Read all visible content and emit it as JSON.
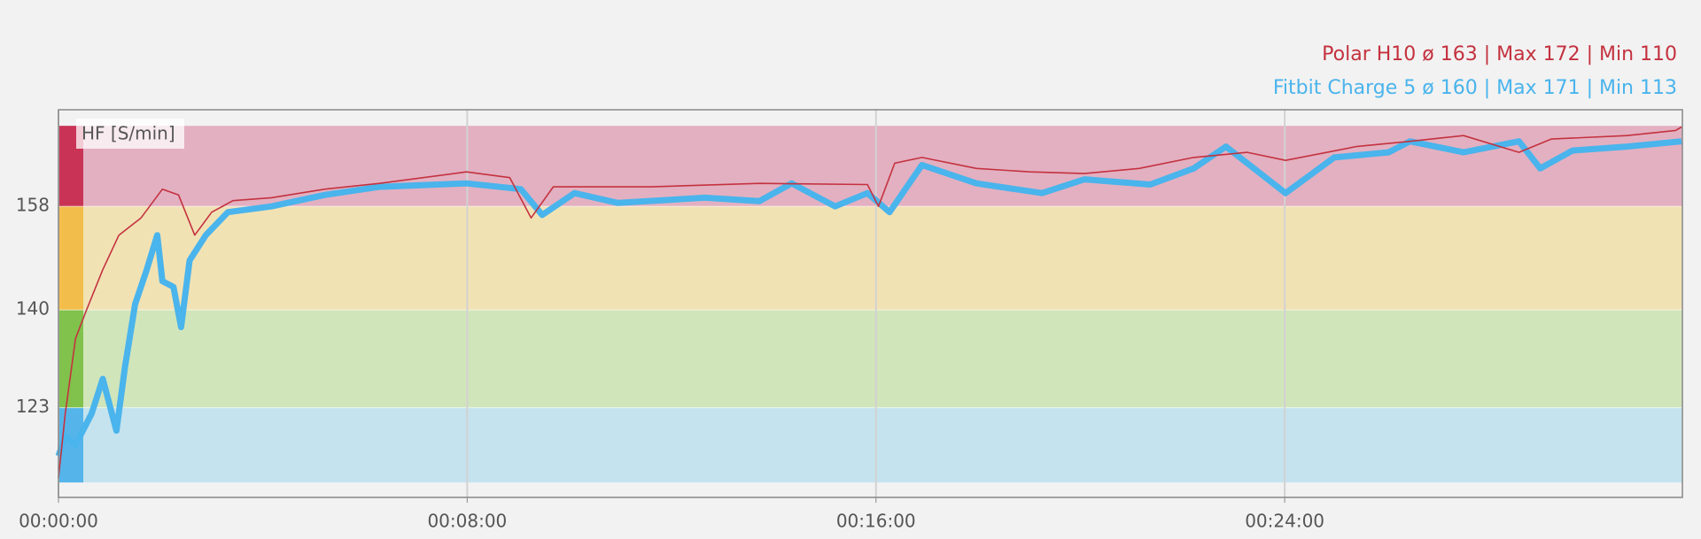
{
  "chart_data": {
    "type": "line",
    "y_label": "HF [S/min]",
    "xlim": [
      0,
      1907
    ],
    "ylim": [
      107.4,
      174.8
    ],
    "xticks": [
      {
        "value": 0,
        "label": "00:00:00"
      },
      {
        "value": 480,
        "label": "00:08:00"
      },
      {
        "value": 960,
        "label": "00:16:00"
      },
      {
        "value": 1440,
        "label": "00:24:00"
      }
    ],
    "yticks": [
      123,
      140,
      158
    ],
    "grid": true,
    "legend": "top-right",
    "zones": [
      {
        "from": 110,
        "to": 123,
        "color": "#c4e3ee",
        "strip": "#55b5ea"
      },
      {
        "from": 123,
        "to": 140,
        "color": "#d1e5ba",
        "strip": "#80c24c"
      },
      {
        "from": 140,
        "to": 158,
        "color": "#f1e2b4",
        "strip": "#f2bd4a"
      },
      {
        "from": 158,
        "to": 172,
        "color": "#e3b0c1",
        "strip": "#c93456"
      }
    ],
    "series": [
      {
        "name": "Polar H10 ø 163 | Max 172 | Min 110",
        "color": "#c4323f",
        "width": 1.6,
        "x": [
          0,
          8,
          20,
          33,
          52,
          71,
          97,
          122,
          141,
          160,
          180,
          205,
          250,
          313,
          377,
          479,
          530,
          555,
          581,
          696,
          823,
          950,
          963,
          982,
          1014,
          1078,
          1141,
          1205,
          1269,
          1333,
          1396,
          1441,
          1524,
          1587,
          1650,
          1715,
          1753,
          1842,
          1899,
          1906
        ],
        "values": [
          110.8,
          122,
          135,
          140,
          147,
          153,
          156,
          161,
          160,
          153,
          157,
          159,
          159.5,
          161,
          162,
          164,
          163,
          156,
          161.4,
          161.4,
          162,
          161.8,
          158,
          165.5,
          166.5,
          164.6,
          164,
          163.7,
          164.6,
          166.5,
          167.4,
          166,
          168.4,
          169.3,
          170.3,
          167.4,
          169.7,
          170.3,
          171.2,
          171.8
        ]
      },
      {
        "name": "Fitbit Charge 5 ø 160 | Max 171 | Min 113",
        "color": "#4ab4ec",
        "width": 7,
        "x": [
          0,
          8,
          20,
          39,
          52,
          68,
          78,
          90,
          103,
          116,
          122,
          135,
          144,
          154,
          173,
          199,
          250,
          313,
          377,
          479,
          543,
          568,
          606,
          657,
          759,
          823,
          861,
          912,
          950,
          976,
          1014,
          1078,
          1155,
          1205,
          1282,
          1333,
          1371,
          1396,
          1441,
          1498,
          1562,
          1587,
          1650,
          1715,
          1740,
          1778,
          1842,
          1906
        ],
        "values": [
          114.6,
          118,
          116.5,
          122,
          128,
          119,
          130,
          141,
          146.7,
          153,
          145,
          144,
          137,
          148.6,
          153,
          157,
          158,
          160,
          161.4,
          162,
          161,
          156.5,
          160.3,
          158.6,
          159.5,
          158.9,
          162,
          158,
          160.3,
          157,
          165.2,
          162,
          160.3,
          162.7,
          161.8,
          164.6,
          168.4,
          165.5,
          160.3,
          166.5,
          167.4,
          169.3,
          167.4,
          169.3,
          164.6,
          167.7,
          168.4,
          169.3
        ]
      }
    ]
  }
}
